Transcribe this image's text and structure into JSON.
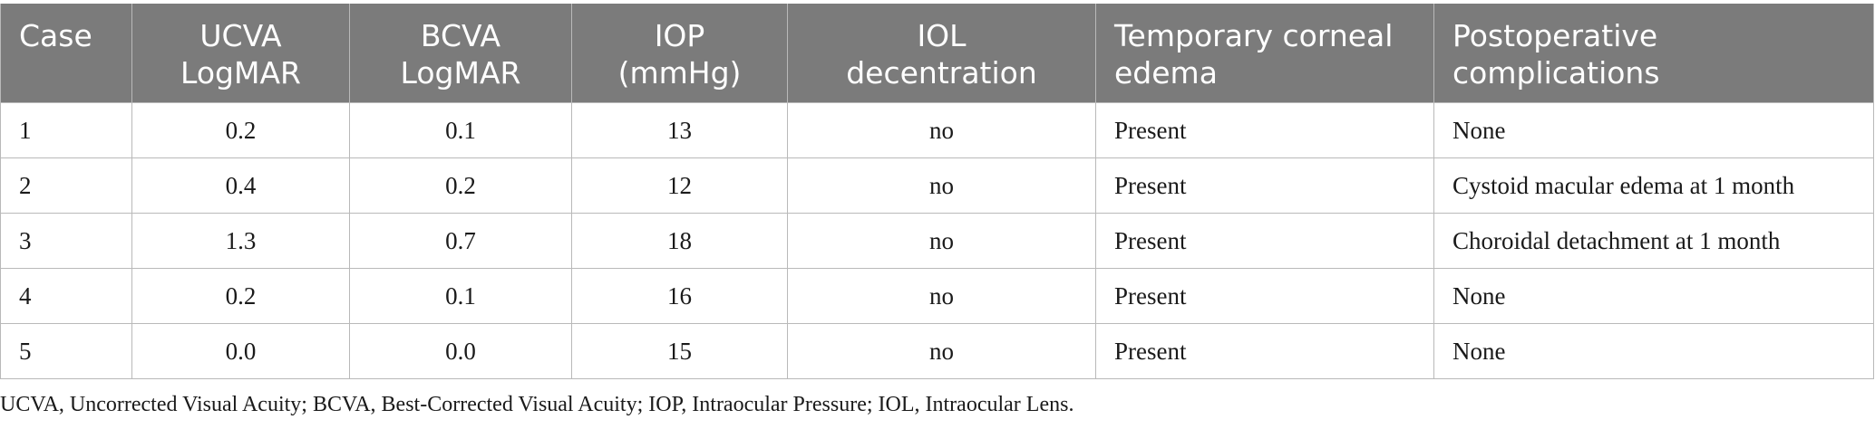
{
  "table": {
    "headers": [
      {
        "line1": "Case",
        "line2": ""
      },
      {
        "line1": "UCVA",
        "line2": "LogMAR"
      },
      {
        "line1": "BCVA",
        "line2": "LogMAR"
      },
      {
        "line1": "IOP (mmHg)",
        "line2": ""
      },
      {
        "line1": "IOL",
        "line2": "decentration"
      },
      {
        "line1": "Temporary corneal",
        "line2": "edema"
      },
      {
        "line1": "Postoperative",
        "line2": "complications"
      }
    ],
    "rows": [
      [
        "1",
        "0.2",
        "0.1",
        "13",
        "no",
        "Present",
        "None"
      ],
      [
        "2",
        "0.4",
        "0.2",
        "12",
        "no",
        "Present",
        "Cystoid macular edema at 1 month"
      ],
      [
        "3",
        "1.3",
        "0.7",
        "18",
        "no",
        "Present",
        "Choroidal detachment at 1 month"
      ],
      [
        "4",
        "0.2",
        "0.1",
        "16",
        "no",
        "Present",
        "None"
      ],
      [
        "5",
        "0.0",
        "0.0",
        "15",
        "no",
        "Present",
        "None"
      ]
    ]
  },
  "footnote": "UCVA, Uncorrected Visual Acuity; BCVA, Best-Corrected Visual Acuity; IOP, Intraocular Pressure; IOL, Intraocular Lens."
}
